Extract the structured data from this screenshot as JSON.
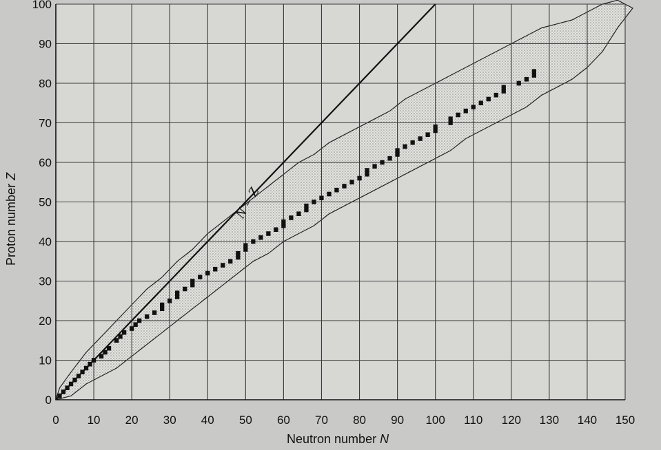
{
  "chart_data": {
    "type": "scatter",
    "xlabel": "Neutron number",
    "xlabel_symbol": "N",
    "ylabel": "Proton number",
    "ylabel_symbol": "Z",
    "xlim": [
      0,
      150
    ],
    "ylim": [
      0,
      100
    ],
    "x_ticks": [
      0,
      10,
      20,
      30,
      40,
      50,
      60,
      70,
      80,
      90,
      100,
      110,
      120,
      130,
      140,
      150
    ],
    "y_ticks": [
      0,
      10,
      20,
      30,
      40,
      50,
      60,
      70,
      80,
      90,
      100
    ],
    "grid": true,
    "reference_line": {
      "label": "N = Z",
      "from": [
        0,
        0
      ],
      "to": [
        100,
        100
      ]
    },
    "known_nuclei_band": [
      [
        0,
        0
      ],
      [
        4,
        1
      ],
      [
        8,
        4
      ],
      [
        12,
        6
      ],
      [
        16,
        8
      ],
      [
        20,
        11
      ],
      [
        24,
        14
      ],
      [
        28,
        17
      ],
      [
        32,
        20
      ],
      [
        36,
        23
      ],
      [
        40,
        26
      ],
      [
        44,
        29
      ],
      [
        48,
        32
      ],
      [
        52,
        35
      ],
      [
        56,
        37
      ],
      [
        60,
        40
      ],
      [
        64,
        42
      ],
      [
        68,
        44
      ],
      [
        72,
        47
      ],
      [
        76,
        49
      ],
      [
        80,
        51
      ],
      [
        84,
        53
      ],
      [
        88,
        55
      ],
      [
        92,
        57
      ],
      [
        96,
        59
      ],
      [
        100,
        61
      ],
      [
        104,
        63
      ],
      [
        108,
        66
      ],
      [
        112,
        68
      ],
      [
        116,
        70
      ],
      [
        120,
        72
      ],
      [
        124,
        74
      ],
      [
        128,
        77
      ],
      [
        132,
        79
      ],
      [
        136,
        81
      ],
      [
        140,
        84
      ],
      [
        144,
        88
      ],
      [
        148,
        94
      ],
      [
        152,
        99
      ],
      [
        148,
        101
      ],
      [
        144,
        100
      ],
      [
        140,
        98
      ],
      [
        136,
        96
      ],
      [
        132,
        95
      ],
      [
        128,
        94
      ],
      [
        124,
        92
      ],
      [
        120,
        90
      ],
      [
        116,
        88
      ],
      [
        112,
        86
      ],
      [
        108,
        84
      ],
      [
        104,
        82
      ],
      [
        100,
        80
      ],
      [
        96,
        78
      ],
      [
        92,
        76
      ],
      [
        88,
        73
      ],
      [
        84,
        71
      ],
      [
        80,
        69
      ],
      [
        76,
        67
      ],
      [
        72,
        65
      ],
      [
        68,
        62
      ],
      [
        64,
        60
      ],
      [
        60,
        57
      ],
      [
        56,
        54
      ],
      [
        52,
        51
      ],
      [
        48,
        48
      ],
      [
        44,
        45
      ],
      [
        40,
        42
      ],
      [
        36,
        38
      ],
      [
        32,
        35
      ],
      [
        28,
        31
      ],
      [
        24,
        28
      ],
      [
        20,
        24
      ],
      [
        16,
        20
      ],
      [
        12,
        16
      ],
      [
        8,
        12
      ],
      [
        4,
        7
      ],
      [
        1,
        3
      ],
      [
        0,
        0
      ]
    ],
    "stable_nuclei": [
      [
        1,
        1
      ],
      [
        2,
        2
      ],
      [
        3,
        3
      ],
      [
        4,
        4
      ],
      [
        5,
        5
      ],
      [
        6,
        6
      ],
      [
        7,
        7
      ],
      [
        8,
        8
      ],
      [
        9,
        9
      ],
      [
        10,
        10
      ],
      [
        12,
        11
      ],
      [
        13,
        12
      ],
      [
        14,
        13
      ],
      [
        16,
        15
      ],
      [
        17,
        16
      ],
      [
        18,
        17
      ],
      [
        20,
        18
      ],
      [
        21,
        19
      ],
      [
        22,
        20
      ],
      [
        24,
        21
      ],
      [
        26,
        22
      ],
      [
        28,
        23
      ],
      [
        28,
        24
      ],
      [
        30,
        25
      ],
      [
        32,
        26
      ],
      [
        32,
        27
      ],
      [
        34,
        28
      ],
      [
        36,
        29
      ],
      [
        36,
        30
      ],
      [
        38,
        31
      ],
      [
        40,
        32
      ],
      [
        42,
        33
      ],
      [
        44,
        34
      ],
      [
        46,
        35
      ],
      [
        48,
        36
      ],
      [
        48,
        37
      ],
      [
        50,
        38
      ],
      [
        50,
        39
      ],
      [
        52,
        40
      ],
      [
        54,
        41
      ],
      [
        56,
        42
      ],
      [
        58,
        43
      ],
      [
        60,
        44
      ],
      [
        60,
        45
      ],
      [
        62,
        46
      ],
      [
        64,
        47
      ],
      [
        66,
        48
      ],
      [
        66,
        49
      ],
      [
        68,
        50
      ],
      [
        70,
        51
      ],
      [
        72,
        52
      ],
      [
        74,
        53
      ],
      [
        76,
        54
      ],
      [
        78,
        55
      ],
      [
        80,
        56
      ],
      [
        82,
        57
      ],
      [
        82,
        58
      ],
      [
        84,
        59
      ],
      [
        86,
        60
      ],
      [
        88,
        61
      ],
      [
        90,
        62
      ],
      [
        90,
        63
      ],
      [
        92,
        64
      ],
      [
        94,
        65
      ],
      [
        96,
        66
      ],
      [
        98,
        67
      ],
      [
        100,
        68
      ],
      [
        100,
        69
      ],
      [
        104,
        70
      ],
      [
        104,
        71
      ],
      [
        106,
        72
      ],
      [
        108,
        73
      ],
      [
        110,
        74
      ],
      [
        112,
        75
      ],
      [
        114,
        76
      ],
      [
        116,
        77
      ],
      [
        118,
        78
      ],
      [
        118,
        79
      ],
      [
        122,
        80
      ],
      [
        124,
        81
      ],
      [
        126,
        82
      ],
      [
        126,
        83
      ]
    ]
  }
}
